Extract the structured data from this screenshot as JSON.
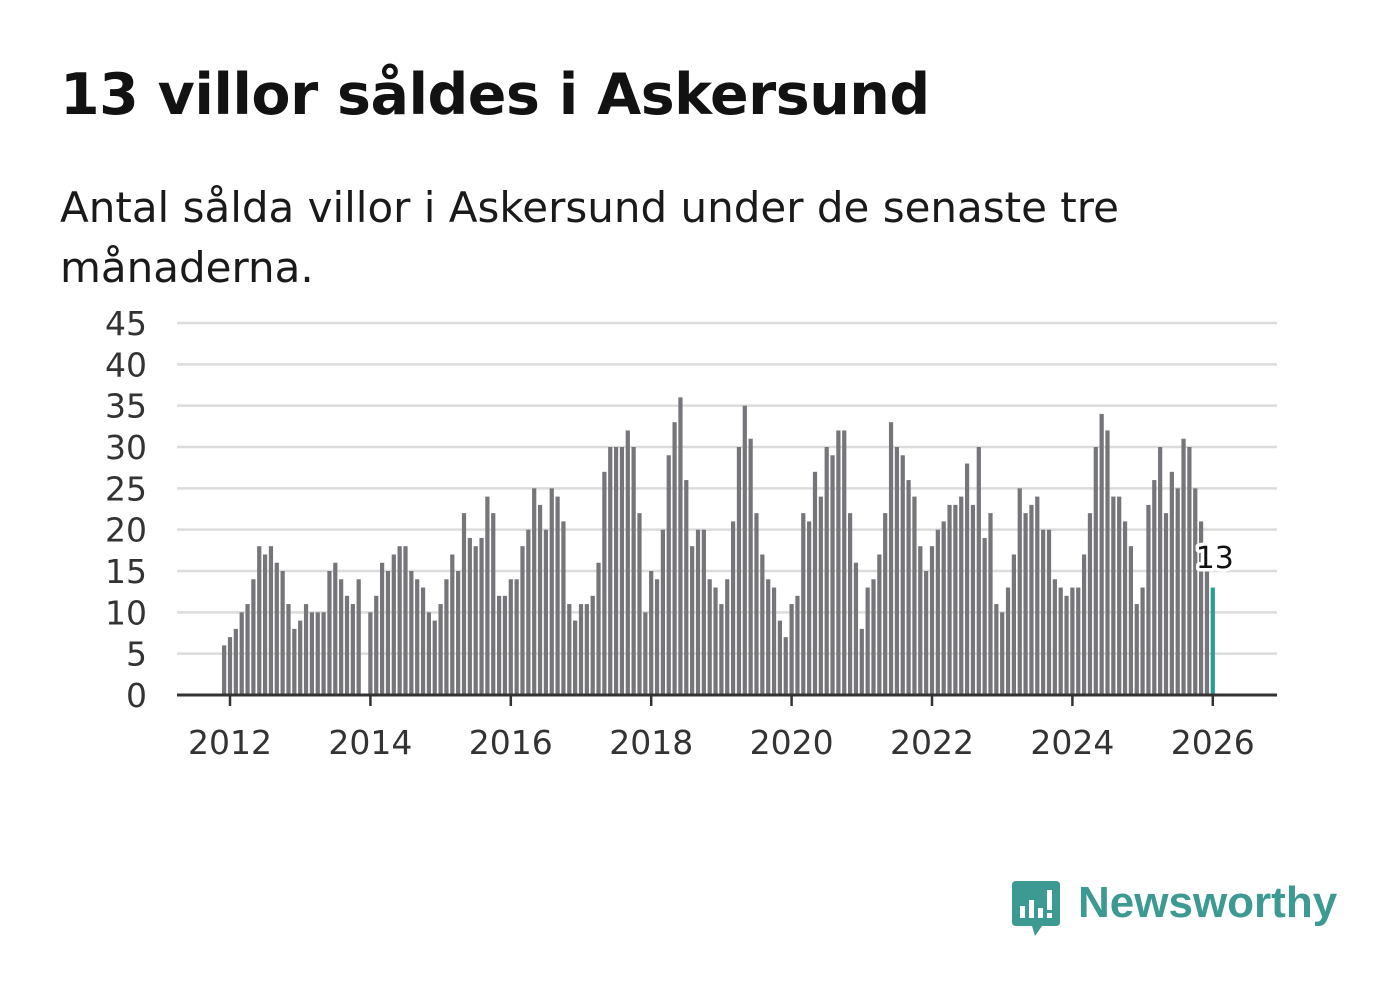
{
  "title": "13 villor såldes i Askersund",
  "subtitle": "Antal sålda villor i Askersund under de senaste tre månaderna.",
  "brand": {
    "name": "Newsworthy",
    "icon": "newsworthy-logo-icon",
    "color": "#3d9a93"
  },
  "chart_data": {
    "type": "bar",
    "title": "13 villor såldes i Askersund",
    "subtitle": "Antal sålda villor i Askersund under de senaste tre månaderna.",
    "x_start": "2011-12",
    "x_end": "2026-02",
    "x_tick_labels": [
      "2012",
      "2014",
      "2016",
      "2018",
      "2020",
      "2022",
      "2024",
      "2026"
    ],
    "y_ticks": [
      0,
      5,
      10,
      15,
      20,
      25,
      30,
      35,
      40,
      45
    ],
    "ylim": [
      0,
      45
    ],
    "grid": true,
    "bar_color": "#75757a",
    "highlight_color": "#2a9d97",
    "highlight_label": "13",
    "values": [
      6,
      7,
      8,
      10,
      11,
      14,
      18,
      17,
      18,
      16,
      15,
      11,
      8,
      9,
      11,
      10,
      10,
      10,
      15,
      16,
      14,
      12,
      11,
      14,
      0,
      10,
      12,
      16,
      15,
      17,
      18,
      18,
      15,
      14,
      13,
      10,
      9,
      11,
      14,
      17,
      15,
      22,
      19,
      18,
      19,
      24,
      22,
      12,
      12,
      14,
      14,
      18,
      20,
      25,
      23,
      20,
      25,
      24,
      21,
      11,
      9,
      11,
      11,
      12,
      16,
      27,
      30,
      30,
      30,
      32,
      30,
      22,
      10,
      15,
      14,
      20,
      29,
      33,
      36,
      26,
      18,
      20,
      20,
      14,
      13,
      11,
      14,
      21,
      30,
      35,
      31,
      22,
      17,
      14,
      13,
      9,
      7,
      11,
      12,
      22,
      21,
      27,
      24,
      30,
      29,
      32,
      32,
      22,
      16,
      8,
      13,
      14,
      17,
      22,
      33,
      30,
      29,
      26,
      24,
      18,
      15,
      18,
      20,
      21,
      23,
      23,
      24,
      28,
      23,
      30,
      19,
      22,
      11,
      10,
      13,
      17,
      25,
      22,
      23,
      24,
      20,
      20,
      14,
      13,
      12,
      13,
      13,
      17,
      22,
      30,
      34,
      32,
      24,
      24,
      21,
      18,
      11,
      13,
      23,
      26,
      30,
      22,
      27,
      25,
      31,
      30,
      25,
      21,
      16,
      13
    ]
  }
}
